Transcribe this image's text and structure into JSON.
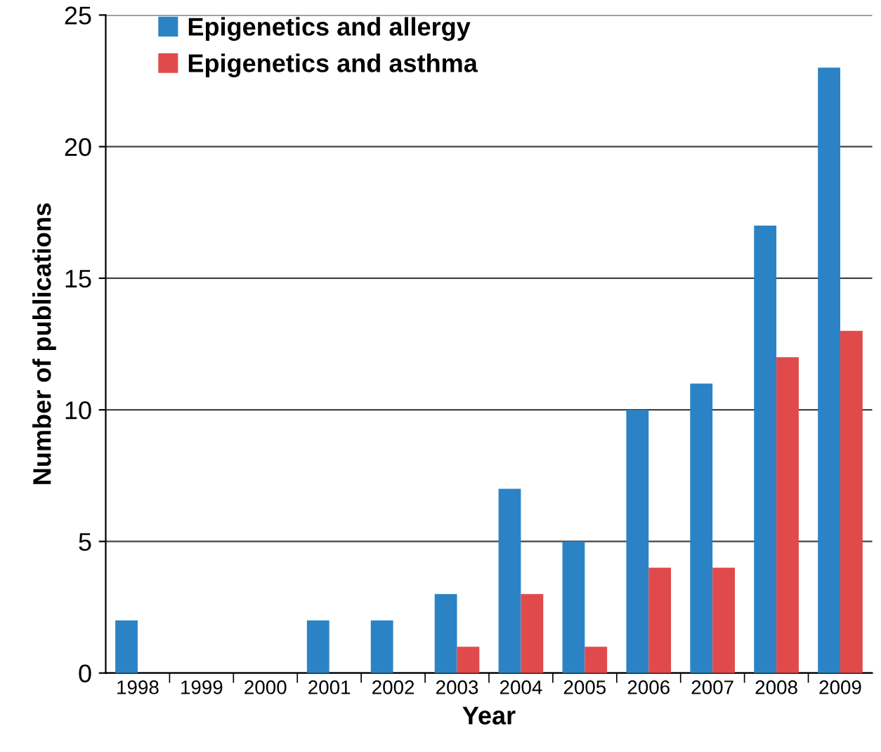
{
  "chart_data": {
    "type": "bar",
    "xlabel": "Year",
    "ylabel": "Number of publications",
    "categories": [
      "1998",
      "1999",
      "2000",
      "2001",
      "2002",
      "2003",
      "2004",
      "2005",
      "2006",
      "2007",
      "2008",
      "2009"
    ],
    "series": [
      {
        "name": "Epigenetics and allergy",
        "color": "#2b83c6",
        "values": [
          2,
          0,
          0,
          2,
          2,
          3,
          7,
          5,
          10,
          11,
          17,
          23
        ]
      },
      {
        "name": "Epigenetics and asthma",
        "color": "#e04a4a",
        "values": [
          0,
          0,
          0,
          0,
          0,
          1,
          3,
          1,
          4,
          4,
          12,
          13
        ]
      }
    ],
    "ylim": [
      0,
      25
    ],
    "yticks": [
      0,
      5,
      10,
      15,
      20,
      25
    ],
    "grid": "y",
    "legend": "top left"
  }
}
